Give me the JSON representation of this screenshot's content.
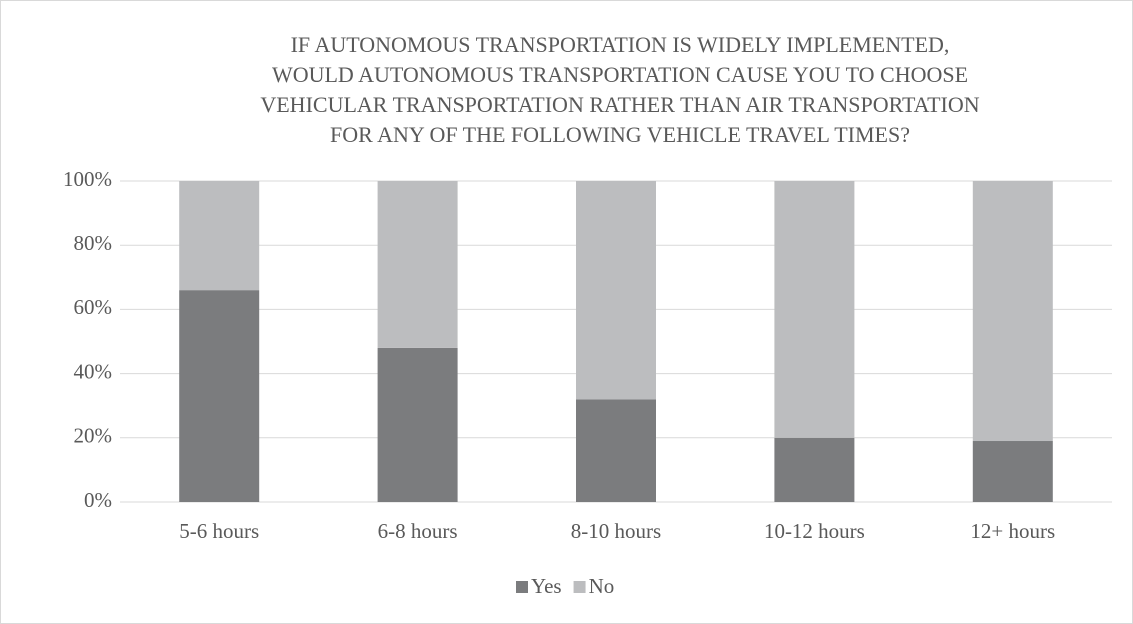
{
  "chart_data": {
    "type": "stacked_bar",
    "title": [
      "IF AUTONOMOUS TRANSPORTATION IS WIDELY IMPLEMENTED,",
      "WOULD AUTONOMOUS TRANSPORTATION CAUSE YOU TO CHOOSE",
      "VEHICULAR TRANSPORTATION RATHER THAN AIR TRANSPORTATION",
      "FOR ANY OF THE FOLLOWING VEHICLE TRAVEL TIMES?"
    ],
    "categories": [
      "5-6 hours",
      "6-8 hours",
      "8-10 hours",
      "10-12 hours",
      "12+ hours"
    ],
    "series": [
      {
        "name": "Yes",
        "color": "#7b7c7e",
        "values": [
          66,
          48,
          32,
          20,
          19
        ]
      },
      {
        "name": "No",
        "color": "#bcbdbf",
        "values": [
          34,
          52,
          68,
          80,
          81
        ]
      }
    ],
    "ylim": [
      0,
      100
    ],
    "yticks": [
      {
        "value": 0,
        "label": "0%"
      },
      {
        "value": 20,
        "label": "20%"
      },
      {
        "value": 40,
        "label": "40%"
      },
      {
        "value": 60,
        "label": "60%"
      },
      {
        "value": 80,
        "label": "80%"
      },
      {
        "value": 100,
        "label": "100%"
      }
    ],
    "grid": true,
    "legend": "bottom"
  }
}
